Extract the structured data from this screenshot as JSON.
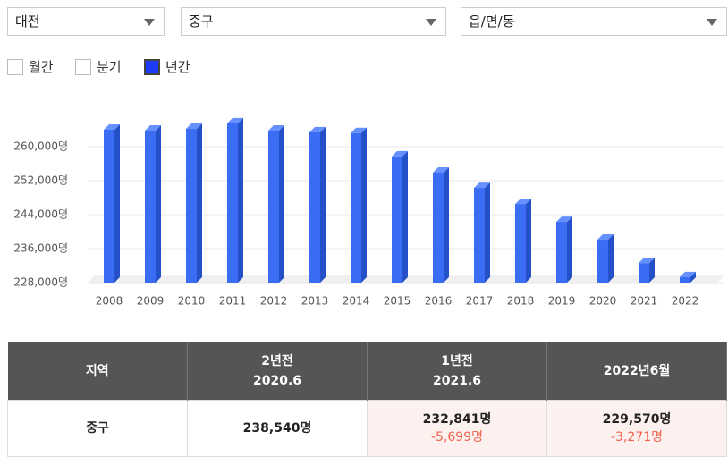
{
  "selects": [
    "대전",
    "중구",
    "읍/면/동"
  ],
  "periods": [
    {
      "label": "월간",
      "checked": false
    },
    {
      "label": "분기",
      "checked": false
    },
    {
      "label": "년간",
      "checked": true
    }
  ],
  "chart_data": {
    "type": "bar",
    "categories": [
      "2008",
      "2009",
      "2010",
      "2011",
      "2012",
      "2013",
      "2014",
      "2015",
      "2016",
      "2017",
      "2018",
      "2019",
      "2020",
      "2021",
      "2022"
    ],
    "values": [
      264000,
      263800,
      264200,
      265500,
      263800,
      263400,
      263200,
      257700,
      253900,
      250300,
      246500,
      242300,
      238100,
      232600,
      229300
    ],
    "color": "#3a6cf4",
    "ylim": [
      228000,
      268000
    ],
    "yticks": [
      {
        "value": 228000,
        "label": "228,000명"
      },
      {
        "value": 236000,
        "label": "236,000명"
      },
      {
        "value": 244000,
        "label": "244,000명"
      },
      {
        "value": 252000,
        "label": "252,000명"
      },
      {
        "value": 260000,
        "label": "260,000명"
      }
    ],
    "grid": true
  },
  "table": {
    "header": [
      {
        "label": "지역"
      },
      {
        "label": "2년전",
        "date": "2020.6"
      },
      {
        "label": "1년전",
        "date": "2021.6"
      },
      {
        "label": "2022년6월"
      }
    ],
    "rows": [
      {
        "region": "중구",
        "cells": [
          {
            "value": "238,540명"
          },
          {
            "value": "232,841명",
            "change": "-5,699명"
          },
          {
            "value": "229,570명",
            "change": "-3,271명"
          }
        ]
      }
    ]
  }
}
